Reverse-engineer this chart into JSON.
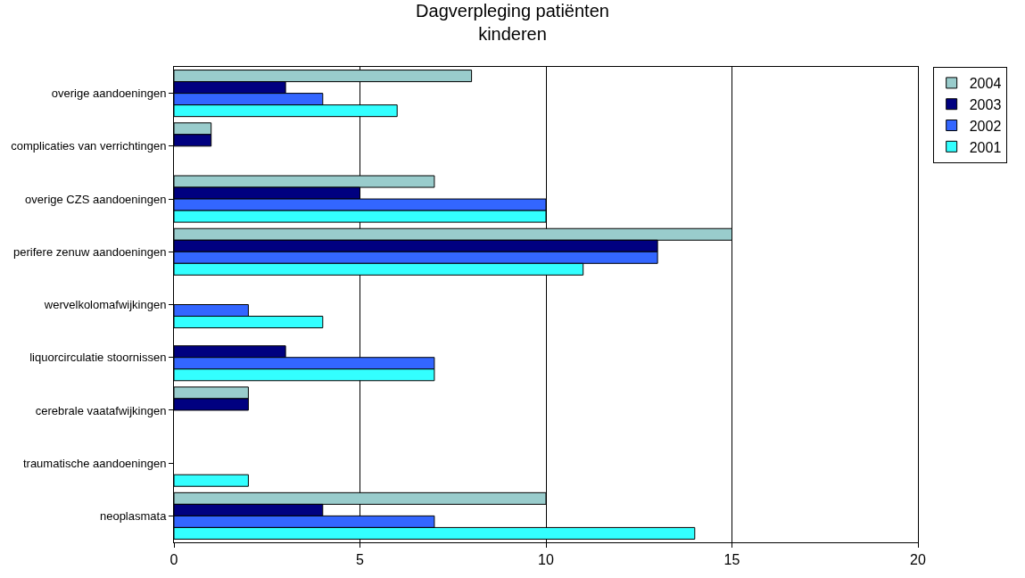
{
  "chart_data": {
    "type": "bar",
    "orientation": "horizontal",
    "title": "Dagverpleging patiënten\nkinderen",
    "categories": [
      "overige aandoeningen",
      "complicaties van verrichtingen",
      "overige CZS aandoeningen",
      "perifere zenuw aandoeningen",
      "wervelkolomafwijkingen",
      "liquorcirculatie stoornissen",
      "cerebrale vaatafwijkingen",
      "traumatische aandoeningen",
      "neoplasmata"
    ],
    "series": [
      {
        "name": "2004",
        "color": "#99cccc",
        "values": [
          8,
          1,
          7,
          15,
          null,
          null,
          2,
          null,
          10
        ]
      },
      {
        "name": "2003",
        "color": "#000080",
        "values": [
          3,
          1,
          5,
          13,
          null,
          3,
          2,
          null,
          4
        ]
      },
      {
        "name": "2002",
        "color": "#3366ff",
        "values": [
          4,
          null,
          10,
          13,
          2,
          7,
          null,
          null,
          7
        ]
      },
      {
        "name": "2001",
        "color": "#33ffff",
        "values": [
          6,
          null,
          10,
          11,
          4,
          7,
          null,
          2,
          14
        ]
      }
    ],
    "xlim": [
      0,
      20
    ],
    "xticks": [
      0,
      5,
      10,
      15,
      20
    ],
    "grid": "x",
    "legend": "top right"
  }
}
